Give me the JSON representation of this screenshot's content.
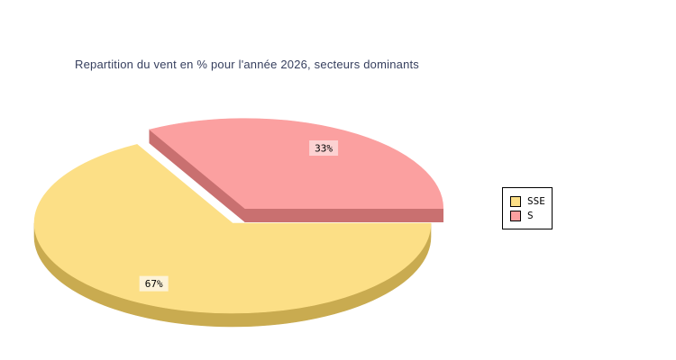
{
  "page": {
    "background": "#ffffff"
  },
  "title": {
    "text": "Repartition du vent en % pour l'année 2026, secteurs dominants",
    "color": "#363f5e"
  },
  "chart_data": {
    "type": "pie",
    "style": "3d-exploded",
    "title": "Repartition du vent en % pour l'année 2026, secteurs dominants",
    "unit": "%",
    "start_angle_deg": 118.8,
    "direction": "ccw",
    "legend_position": "right",
    "slices": [
      {
        "label": "SSE",
        "value": 67,
        "data_label": "67%",
        "color": "#fcdf86",
        "side_color": "#c9ab50",
        "label_bg": "#fdf3d8",
        "exploded": false
      },
      {
        "label": "S",
        "value": 33,
        "data_label": "33%",
        "color": "#fba0a0",
        "side_color": "#c97070",
        "label_bg": "#fcd2d2",
        "exploded": true
      }
    ]
  },
  "legend": {
    "items": [
      {
        "label": "SSE",
        "color": "#fcdf86"
      },
      {
        "label": "S",
        "color": "#fba0a0"
      }
    ]
  }
}
